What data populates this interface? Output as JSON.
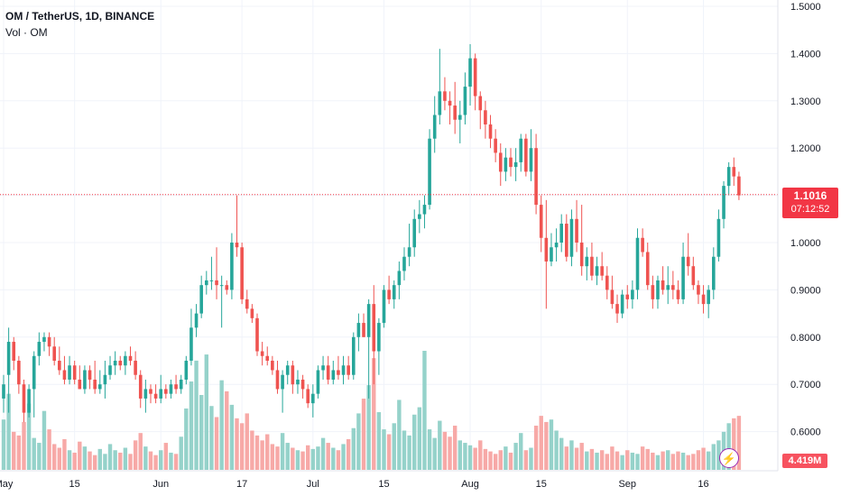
{
  "header": {
    "symbol": "OM / TetherUS, 1D, BINANCE",
    "volume_label": "Vol · OM"
  },
  "price_tag": {
    "price": "1.1016",
    "countdown": "07:12:52"
  },
  "volume_tag": "4.419M",
  "colors": {
    "up": "#26a69a",
    "down": "#ef5350",
    "vol_up": "#95d2ca",
    "vol_down": "#f7a9a7",
    "last": "#f23645"
  },
  "icons": {
    "flash": "lightning-icon"
  },
  "chart_data": {
    "type": "candlestick",
    "y_axis": {
      "min": 0.5,
      "max": 1.5,
      "ticks": [
        "1.5000",
        "1.4000",
        "1.3000",
        "1.2000",
        "1.1000",
        "1.0000",
        "0.9000",
        "0.8000",
        "0.7000",
        "0.6000"
      ],
      "tick_values": [
        1.5,
        1.4,
        1.3,
        1.2,
        1.1,
        1.0,
        0.9,
        0.8,
        0.7,
        0.6
      ],
      "position": "right"
    },
    "x_axis": {
      "labels": [
        "May",
        "15",
        "Jun",
        "17",
        "Jul",
        "15",
        "Aug",
        "15",
        "Sep",
        "16"
      ],
      "label_day_index": [
        0,
        14,
        31,
        47,
        61,
        75,
        92,
        106,
        123,
        138
      ]
    },
    "last_price": 1.1016,
    "ohlc": [
      [
        0.67,
        0.72,
        0.64,
        0.7
      ],
      [
        0.72,
        0.82,
        0.64,
        0.79
      ],
      [
        0.79,
        0.8,
        0.73,
        0.75
      ],
      [
        0.75,
        0.76,
        0.68,
        0.7
      ],
      [
        0.7,
        0.71,
        0.62,
        0.64
      ],
      [
        0.64,
        0.7,
        0.63,
        0.69
      ],
      [
        0.69,
        0.77,
        0.63,
        0.76
      ],
      [
        0.76,
        0.81,
        0.74,
        0.79
      ],
      [
        0.79,
        0.81,
        0.77,
        0.8
      ],
      [
        0.8,
        0.81,
        0.76,
        0.78
      ],
      [
        0.78,
        0.8,
        0.74,
        0.75
      ],
      [
        0.75,
        0.78,
        0.72,
        0.73
      ],
      [
        0.73,
        0.76,
        0.7,
        0.71
      ],
      [
        0.71,
        0.76,
        0.7,
        0.74
      ],
      [
        0.74,
        0.75,
        0.7,
        0.71
      ],
      [
        0.71,
        0.74,
        0.69,
        0.69
      ],
      [
        0.69,
        0.74,
        0.68,
        0.73
      ],
      [
        0.73,
        0.74,
        0.69,
        0.71
      ],
      [
        0.71,
        0.75,
        0.68,
        0.69
      ],
      [
        0.69,
        0.73,
        0.68,
        0.7
      ],
      [
        0.7,
        0.75,
        0.67,
        0.72
      ],
      [
        0.72,
        0.76,
        0.71,
        0.74
      ],
      [
        0.74,
        0.77,
        0.72,
        0.75
      ],
      [
        0.75,
        0.76,
        0.73,
        0.74
      ],
      [
        0.74,
        0.77,
        0.72,
        0.76
      ],
      [
        0.76,
        0.78,
        0.74,
        0.75
      ],
      [
        0.75,
        0.77,
        0.71,
        0.72
      ],
      [
        0.72,
        0.73,
        0.65,
        0.67
      ],
      [
        0.67,
        0.71,
        0.64,
        0.69
      ],
      [
        0.69,
        0.7,
        0.66,
        0.68
      ],
      [
        0.68,
        0.7,
        0.66,
        0.67
      ],
      [
        0.67,
        0.72,
        0.66,
        0.69
      ],
      [
        0.69,
        0.7,
        0.67,
        0.68
      ],
      [
        0.68,
        0.71,
        0.67,
        0.7
      ],
      [
        0.7,
        0.72,
        0.68,
        0.69
      ],
      [
        0.69,
        0.72,
        0.68,
        0.71
      ],
      [
        0.71,
        0.76,
        0.7,
        0.75
      ],
      [
        0.75,
        0.86,
        0.74,
        0.82
      ],
      [
        0.82,
        0.87,
        0.8,
        0.85
      ],
      [
        0.85,
        0.93,
        0.84,
        0.91
      ],
      [
        0.91,
        0.94,
        0.89,
        0.92
      ],
      [
        0.92,
        0.97,
        0.9,
        0.92
      ],
      [
        0.92,
        0.99,
        0.88,
        0.91
      ],
      [
        0.91,
        0.93,
        0.82,
        0.91
      ],
      [
        0.91,
        0.92,
        0.89,
        0.9
      ],
      [
        0.9,
        1.02,
        0.88,
        1.0
      ],
      [
        1.0,
        1.1,
        0.97,
        0.99
      ],
      [
        0.99,
        1.0,
        0.87,
        0.88
      ],
      [
        0.88,
        0.9,
        0.85,
        0.86
      ],
      [
        0.86,
        0.87,
        0.83,
        0.84
      ],
      [
        0.84,
        0.85,
        0.76,
        0.77
      ],
      [
        0.77,
        0.79,
        0.74,
        0.76
      ],
      [
        0.76,
        0.78,
        0.74,
        0.75
      ],
      [
        0.75,
        0.76,
        0.72,
        0.73
      ],
      [
        0.73,
        0.75,
        0.68,
        0.69
      ],
      [
        0.69,
        0.73,
        0.64,
        0.72
      ],
      [
        0.72,
        0.75,
        0.7,
        0.74
      ],
      [
        0.74,
        0.75,
        0.68,
        0.7
      ],
      [
        0.7,
        0.73,
        0.68,
        0.71
      ],
      [
        0.71,
        0.72,
        0.67,
        0.69
      ],
      [
        0.69,
        0.7,
        0.65,
        0.66
      ],
      [
        0.66,
        0.7,
        0.63,
        0.68
      ],
      [
        0.68,
        0.74,
        0.67,
        0.73
      ],
      [
        0.73,
        0.76,
        0.71,
        0.74
      ],
      [
        0.74,
        0.76,
        0.7,
        0.71
      ],
      [
        0.71,
        0.75,
        0.7,
        0.73
      ],
      [
        0.73,
        0.76,
        0.71,
        0.72
      ],
      [
        0.72,
        0.76,
        0.7,
        0.74
      ],
      [
        0.74,
        0.76,
        0.71,
        0.72
      ],
      [
        0.72,
        0.81,
        0.71,
        0.8
      ],
      [
        0.8,
        0.85,
        0.77,
        0.83
      ],
      [
        0.83,
        0.85,
        0.8,
        0.8
      ],
      [
        0.8,
        0.88,
        0.67,
        0.87
      ],
      [
        0.87,
        0.91,
        0.7,
        0.77
      ],
      [
        0.77,
        0.84,
        0.72,
        0.83
      ],
      [
        0.83,
        0.91,
        0.82,
        0.9
      ],
      [
        0.9,
        0.93,
        0.87,
        0.88
      ],
      [
        0.88,
        0.92,
        0.86,
        0.91
      ],
      [
        0.91,
        0.96,
        0.88,
        0.94
      ],
      [
        0.94,
        0.99,
        0.92,
        0.97
      ],
      [
        0.97,
        1.04,
        0.95,
        0.99
      ],
      [
        0.99,
        1.07,
        0.97,
        1.05
      ],
      [
        1.05,
        1.09,
        1.02,
        1.06
      ],
      [
        1.06,
        1.1,
        1.03,
        1.08
      ],
      [
        1.08,
        1.24,
        1.07,
        1.22
      ],
      [
        1.22,
        1.31,
        1.19,
        1.27
      ],
      [
        1.27,
        1.41,
        1.25,
        1.32
      ],
      [
        1.32,
        1.35,
        1.28,
        1.3
      ],
      [
        1.3,
        1.32,
        1.25,
        1.29
      ],
      [
        1.29,
        1.34,
        1.23,
        1.26
      ],
      [
        1.26,
        1.3,
        1.21,
        1.27
      ],
      [
        1.27,
        1.36,
        1.25,
        1.33
      ],
      [
        1.33,
        1.42,
        1.29,
        1.39
      ],
      [
        1.39,
        1.4,
        1.28,
        1.31
      ],
      [
        1.31,
        1.32,
        1.24,
        1.28
      ],
      [
        1.28,
        1.3,
        1.22,
        1.25
      ],
      [
        1.25,
        1.27,
        1.2,
        1.22
      ],
      [
        1.22,
        1.24,
        1.17,
        1.19
      ],
      [
        1.19,
        1.21,
        1.12,
        1.15
      ],
      [
        1.15,
        1.2,
        1.13,
        1.18
      ],
      [
        1.18,
        1.2,
        1.14,
        1.16
      ],
      [
        1.16,
        1.2,
        1.13,
        1.17
      ],
      [
        1.17,
        1.23,
        1.15,
        1.22
      ],
      [
        1.22,
        1.23,
        1.14,
        1.15
      ],
      [
        1.15,
        1.24,
        1.13,
        1.2
      ],
      [
        1.2,
        1.23,
        1.06,
        1.08
      ],
      [
        1.08,
        1.1,
        0.98,
        1.01
      ],
      [
        1.01,
        1.09,
        0.86,
        0.96
      ],
      [
        0.96,
        1.02,
        0.95,
        0.99
      ],
      [
        0.99,
        1.03,
        0.96,
        1.0
      ],
      [
        1.0,
        1.06,
        0.98,
        1.04
      ],
      [
        1.04,
        1.06,
        0.96,
        0.97
      ],
      [
        0.97,
        1.07,
        0.95,
        1.05
      ],
      [
        1.05,
        1.09,
        0.98,
        1.0
      ],
      [
        1.0,
        1.08,
        0.93,
        0.95
      ],
      [
        0.95,
        0.99,
        0.92,
        0.97
      ],
      [
        0.97,
        1.0,
        0.92,
        0.93
      ],
      [
        0.93,
        0.97,
        0.91,
        0.95
      ],
      [
        0.95,
        0.98,
        0.92,
        0.93
      ],
      [
        0.93,
        0.95,
        0.88,
        0.9
      ],
      [
        0.9,
        0.93,
        0.86,
        0.87
      ],
      [
        0.87,
        0.89,
        0.83,
        0.85
      ],
      [
        0.85,
        0.9,
        0.84,
        0.89
      ],
      [
        0.89,
        0.91,
        0.86,
        0.88
      ],
      [
        0.88,
        0.92,
        0.86,
        0.9
      ],
      [
        0.9,
        1.03,
        0.88,
        1.01
      ],
      [
        1.01,
        1.03,
        0.97,
        0.98
      ],
      [
        0.98,
        1.0,
        0.9,
        0.91
      ],
      [
        0.91,
        0.93,
        0.86,
        0.88
      ],
      [
        0.88,
        0.93,
        0.86,
        0.92
      ],
      [
        0.92,
        0.95,
        0.89,
        0.9
      ],
      [
        0.9,
        0.95,
        0.87,
        0.91
      ],
      [
        0.91,
        0.94,
        0.88,
        0.9
      ],
      [
        0.9,
        0.92,
        0.87,
        0.88
      ],
      [
        0.88,
        1.0,
        0.87,
        0.97
      ],
      [
        0.97,
        1.02,
        0.93,
        0.95
      ],
      [
        0.95,
        0.97,
        0.9,
        0.91
      ],
      [
        0.91,
        0.92,
        0.87,
        0.89
      ],
      [
        0.89,
        0.91,
        0.85,
        0.87
      ],
      [
        0.87,
        0.91,
        0.84,
        0.9
      ],
      [
        0.9,
        0.99,
        0.88,
        0.97
      ],
      [
        0.97,
        1.07,
        0.96,
        1.05
      ],
      [
        1.05,
        1.13,
        1.03,
        1.12
      ],
      [
        1.12,
        1.17,
        1.1,
        1.16
      ],
      [
        1.16,
        1.18,
        1.12,
        1.14
      ],
      [
        1.14,
        1.15,
        1.09,
        1.1
      ]
    ],
    "volume_millions": [
      4.1,
      6.2,
      3.1,
      2.8,
      3.9,
      5.4,
      2.6,
      2.2,
      4.8,
      3.3,
      2.1,
      1.8,
      2.5,
      1.6,
      1.4,
      2.3,
      1.9,
      1.5,
      1.2,
      1.7,
      1.3,
      2.1,
      1.6,
      1.4,
      1.8,
      1.3,
      2.4,
      3.0,
      1.9,
      1.5,
      1.2,
      1.6,
      2.2,
      1.4,
      1.3,
      2.7,
      5.0,
      7.2,
      8.9,
      6.1,
      9.4,
      5.2,
      4.3,
      7.3,
      6.4,
      5.3,
      4.2,
      3.8,
      4.6,
      3.2,
      2.8,
      2.4,
      2.9,
      2.1,
      1.9,
      3.0,
      2.2,
      1.8,
      1.6,
      1.5,
      2.0,
      1.7,
      1.9,
      2.6,
      2.2,
      1.8,
      1.6,
      2.1,
      2.5,
      3.4,
      4.6,
      5.8,
      6.9,
      9.1,
      4.7,
      3.3,
      2.9,
      3.8,
      5.7,
      3.2,
      2.8,
      4.5,
      5.1,
      9.7,
      3.3,
      2.6,
      4.0,
      3.1,
      2.7,
      3.6,
      2.4,
      2.2,
      2.0,
      1.8,
      2.4,
      1.7,
      1.5,
      1.3,
      1.6,
      1.9,
      1.4,
      2.2,
      3.0,
      1.6,
      1.8,
      3.6,
      4.4,
      3.9,
      4.1,
      3.2,
      2.6,
      1.9,
      2.4,
      1.8,
      2.2,
      1.5,
      1.7,
      1.4,
      1.6,
      1.3,
      1.9,
      1.5,
      1.2,
      1.6,
      1.4,
      1.3,
      1.9,
      1.7,
      1.4,
      1.2,
      1.5,
      1.6,
      1.3,
      1.5,
      1.4,
      1.2,
      1.3,
      1.6,
      1.8,
      1.5,
      2.1,
      2.4,
      3.1,
      3.8,
      4.2,
      4.4
    ]
  }
}
